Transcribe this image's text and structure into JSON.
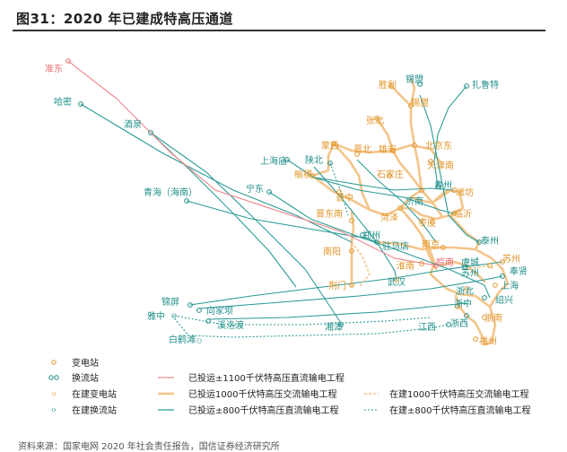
{
  "title": "图31：2020 年已建成特高压通道",
  "source": "资料来源：国家电网 2020 年社会责任报告，国信证券经济研究所",
  "colors": {
    "uhv_ac": "#f3c58a",
    "dc_800": "#2c9c97",
    "dc_1100": "#ef8f93",
    "label_orange": "#e3962a",
    "label_teal": "#1f8f8a",
    "label_red": "#e86a70"
  },
  "stations": {
    "zhundong": "准东",
    "hami": "哈密",
    "jiuquan": "酒泉",
    "qinghai": "青海（海南）",
    "ningdong": "宁东",
    "shanghaimiao": "上海庙",
    "shaanbei": "陕北",
    "menxi": "蒙西",
    "jinbei": "晋北",
    "xiongan": "雄安",
    "yulin": "榆横",
    "shijiazhuang": "石家庄",
    "jinzhong": "晋中",
    "jindongnan": "晋东南",
    "zhengzhou": "郑州",
    "nanyang": "南阳",
    "jingmen": "荆门",
    "wuhan": "武汉",
    "huainan": "淮南",
    "zhumadian": "驻马店",
    "nanjing": "南京",
    "wannan": "皖南",
    "yucheng": "虞城",
    "suzhou": "苏州",
    "fengxian": "奉贤",
    "shanghai": "上海",
    "shaoxing": "绍兴",
    "zhebei": "浙北",
    "zhezhong": "浙中",
    "zhenan": "浙南",
    "fuzhou": "福州",
    "zhexi": "浙西",
    "jiangxi": "江西",
    "xiangtan": "湘潭",
    "taizhou": "泰州",
    "linyi": "临沂",
    "weifang": "潍坊",
    "qingzhou": "青州",
    "jinan": "济南",
    "zaozhuang": "枣庄",
    "tianjinnan": "天津南",
    "beijingdong": "北京东",
    "zhangbei": "张北",
    "shengli": "胜利",
    "ximeng": "锡盟",
    "xilimeng": "锡盟",
    "zhalute": "扎鲁特",
    "heze": "菏泽",
    "qishan": "祁",
    "xiangjiaba": "向家坝",
    "xiluodu": "溪洛渡",
    "jinping": "锦屏",
    "yazhong": "雅中",
    "baihetan": "白鹤滩",
    "nanchang": "南昌"
  },
  "legend": {
    "substation": "变电站",
    "converter": "换流站",
    "substation_building": "在建变电站",
    "converter_building": "在建换流站",
    "dc1100": "已投运±1100千伏特高压直流输电工程",
    "ac1000": "已投运1000千伏特高压交流输电工程",
    "dc800": "已投运±800千伏特高压直流输电工程",
    "ac1000_building": "在建1000千伏特高压交流输电工程",
    "dc800_building": "在建±800千伏特高压直流输电工程"
  }
}
